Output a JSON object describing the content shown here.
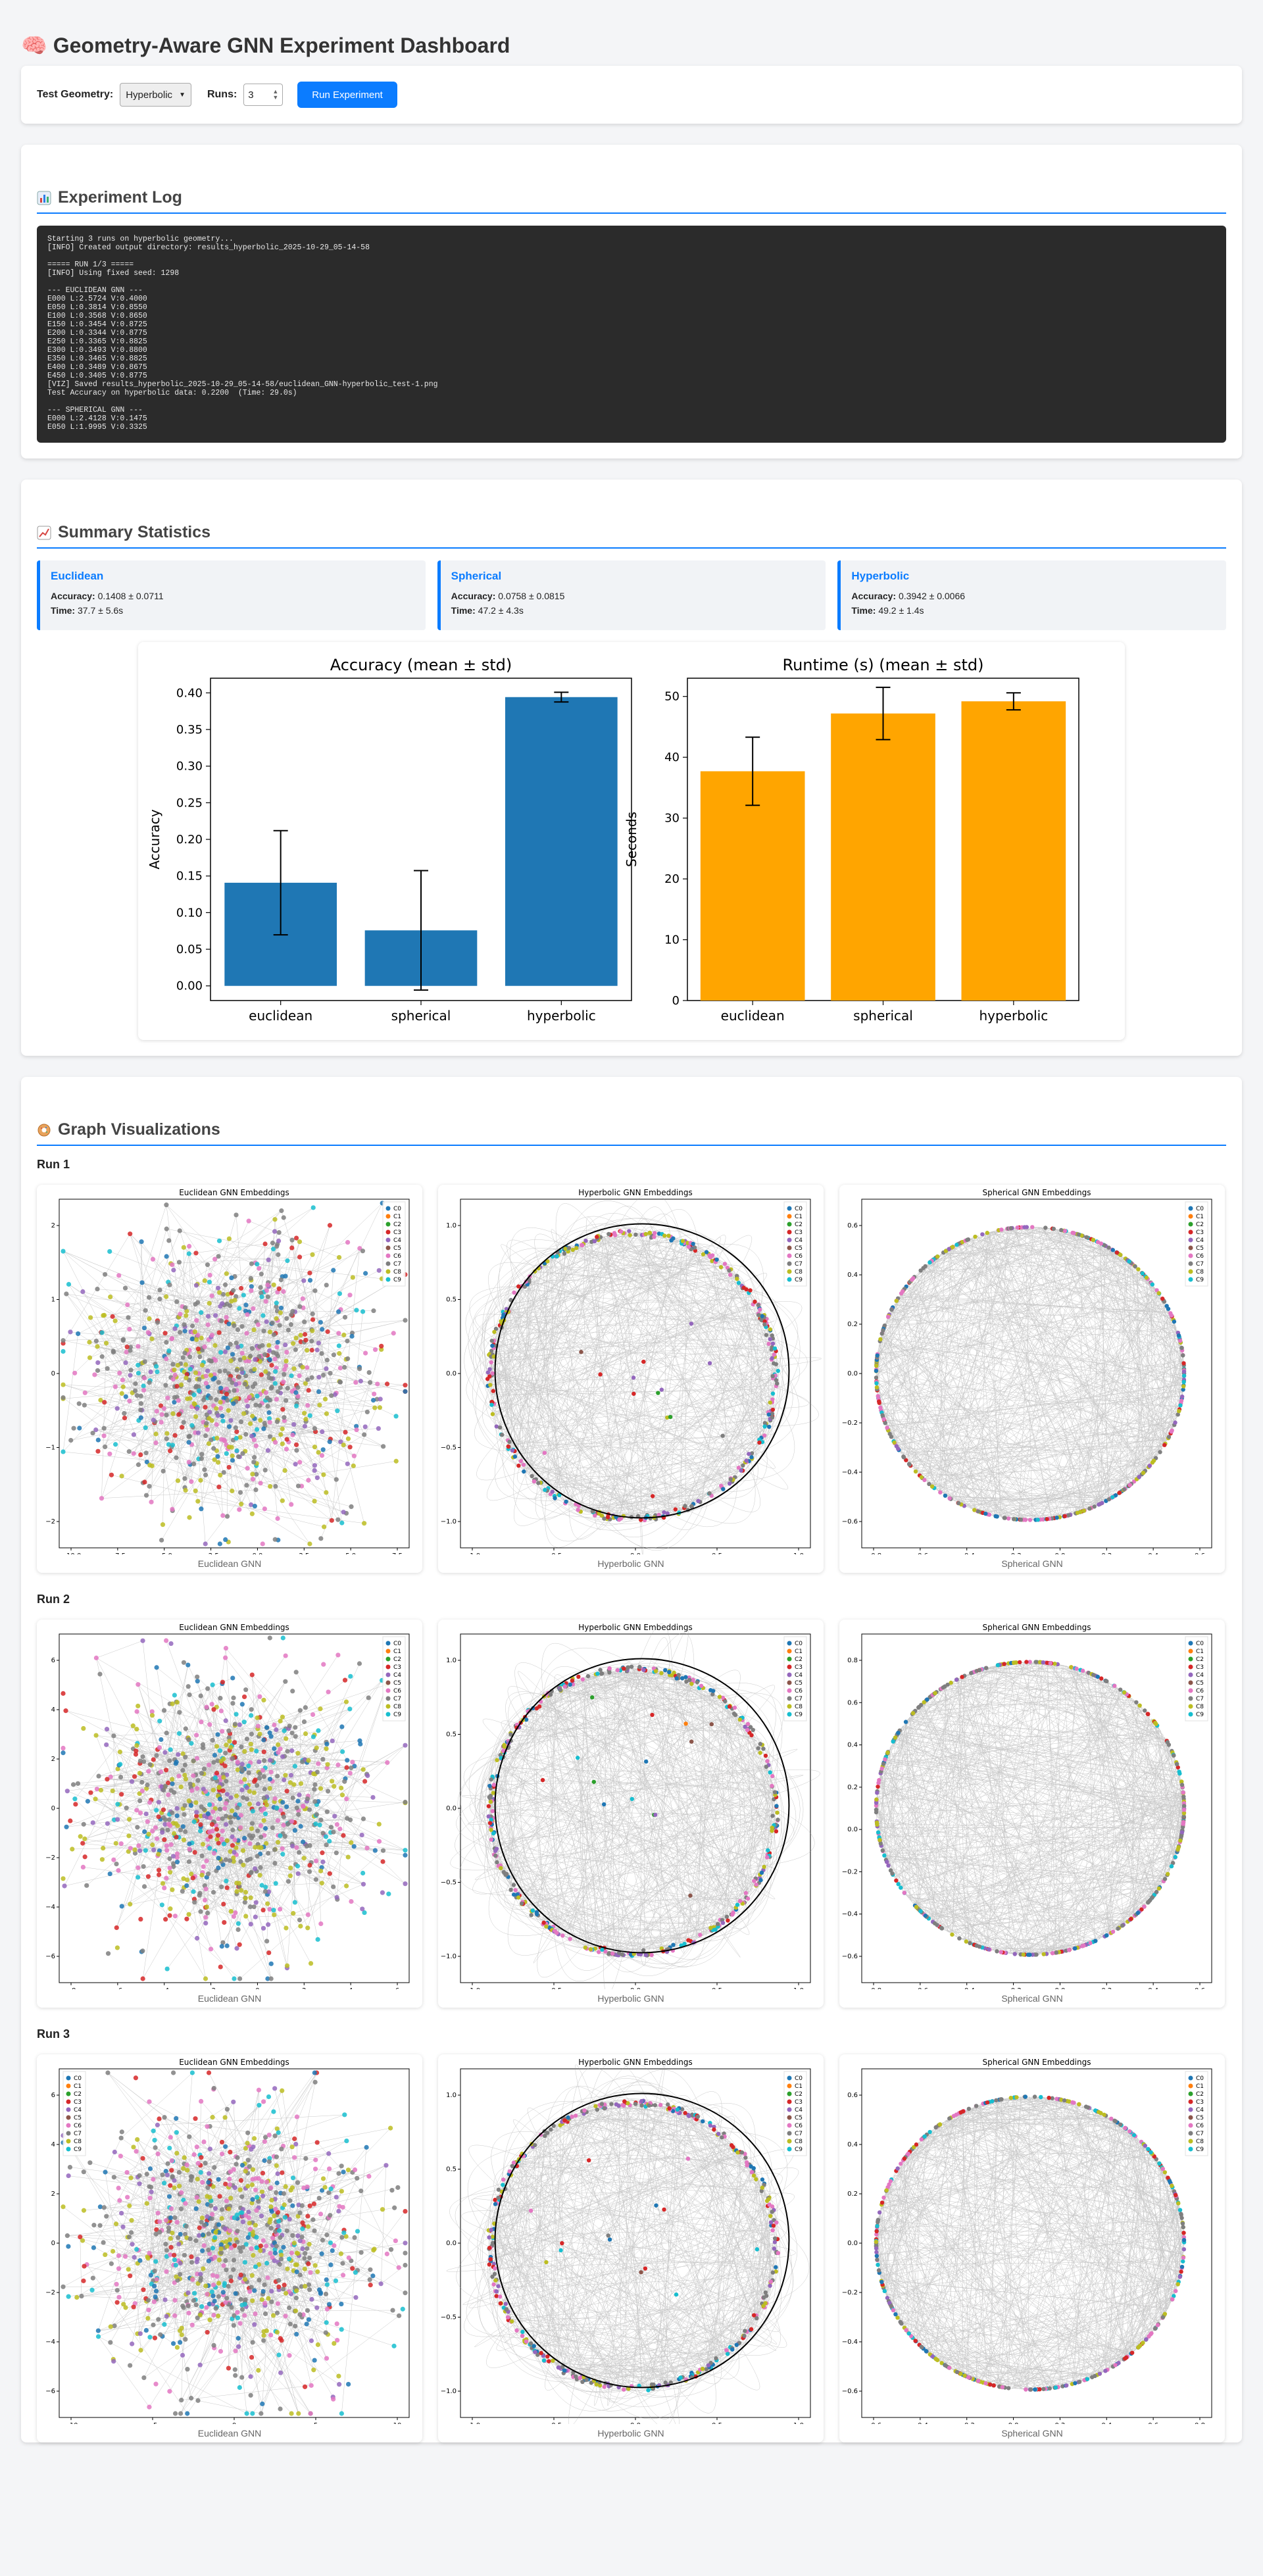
{
  "header": {
    "icon": "brain-icon",
    "title": "🧠 Geometry-Aware GNN Experiment Dashboard"
  },
  "controls": {
    "geometry_label": "Test Geometry:",
    "geometry_value": "Hyperbolic",
    "runs_label": "Runs:",
    "runs_value": "3",
    "run_button": "Run Experiment"
  },
  "log": {
    "title": "Experiment Log",
    "icon": "bar-chart-icon",
    "text": "Starting 3 runs on hyperbolic geometry...\n[INFO] Created output directory: results_hyperbolic_2025-10-29_05-14-58\n\n===== RUN 1/3 =====\n[INFO] Using fixed seed: 1298\n\n--- EUCLIDEAN GNN ---\nE000 L:2.5724 V:0.4000\nE050 L:0.3814 V:0.8550\nE100 L:0.3568 V:0.8650\nE150 L:0.3454 V:0.8725\nE200 L:0.3344 V:0.8775\nE250 L:0.3365 V:0.8825\nE300 L:0.3493 V:0.8800\nE350 L:0.3465 V:0.8825\nE400 L:0.3489 V:0.8675\nE450 L:0.3405 V:0.8775\n[VIZ] Saved results_hyperbolic_2025-10-29_05-14-58/euclidean_GNN-hyperbolic_test-1.png\nTest Accuracy on hyperbolic data: 0.2200  (Time: 29.0s)\n\n--- SPHERICAL GNN ---\nE000 L:2.4128 V:0.1475\nE050 L:1.9995 V:0.3325"
  },
  "summary": {
    "title": "Summary Statistics",
    "icon": "trend-chart-icon",
    "acc_label": "Accuracy:",
    "time_label": "Time:",
    "cards": [
      {
        "name": "Euclidean",
        "accuracy": "0.1408 ± 0.0711",
        "time": "37.7 ± 5.6s"
      },
      {
        "name": "Spherical",
        "accuracy": "0.0758 ± 0.0815",
        "time": "47.2 ± 4.3s"
      },
      {
        "name": "Hyperbolic",
        "accuracy": "0.3942 ± 0.0066",
        "time": "49.2 ± 1.4s"
      }
    ]
  },
  "chart_data": [
    {
      "type": "bar",
      "title": "Accuracy (mean ± std)",
      "ylabel": "Accuracy",
      "xlabel": "",
      "categories": [
        "euclidean",
        "spherical",
        "hyperbolic"
      ],
      "values": [
        0.1408,
        0.0758,
        0.3942
      ],
      "errors": [
        0.0711,
        0.0815,
        0.0066
      ],
      "ylim": [
        -0.02,
        0.42
      ],
      "yticks": [
        0.0,
        0.05,
        0.1,
        0.15,
        0.2,
        0.25,
        0.3,
        0.35,
        0.4
      ],
      "ytick_labels": [
        "0.00",
        "0.05",
        "0.10",
        "0.15",
        "0.20",
        "0.25",
        "0.30",
        "0.35",
        "0.40"
      ],
      "color": "#1f77b4",
      "grid": false
    },
    {
      "type": "bar",
      "title": "Runtime (s) (mean ± std)",
      "ylabel": "Seconds",
      "xlabel": "",
      "categories": [
        "euclidean",
        "spherical",
        "hyperbolic"
      ],
      "values": [
        37.7,
        47.2,
        49.2
      ],
      "errors": [
        5.6,
        4.3,
        1.4
      ],
      "ylim": [
        0,
        53
      ],
      "yticks": [
        0,
        10,
        20,
        30,
        40,
        50
      ],
      "ytick_labels": [
        "0",
        "10",
        "20",
        "30",
        "40",
        "50"
      ],
      "color": "#ffa500",
      "grid": false
    }
  ],
  "viz": {
    "title": "Graph Visualizations",
    "icon": "donut-icon",
    "legend": [
      "C0",
      "C1",
      "C2",
      "C3",
      "C4",
      "C5",
      "C6",
      "C7",
      "C8",
      "C9"
    ],
    "legend_colors": [
      "#1f77b4",
      "#ff7f0e",
      "#2ca02c",
      "#d62728",
      "#9467bd",
      "#8c564b",
      "#e377c2",
      "#7f7f7f",
      "#bcbd22",
      "#17becf"
    ],
    "runs": [
      {
        "label": "Run 1",
        "panels": [
          {
            "kind": "euclidean",
            "title": "Euclidean GNN Embeddings",
            "caption": "Euclidean GNN",
            "xticks": [
              "−10.0",
              "−7.5",
              "−5.0",
              "−2.5",
              "0.0",
              "2.5",
              "5.0",
              "7.5"
            ],
            "yticks": [
              "2",
              "1",
              "0",
              "−1",
              "−2"
            ]
          },
          {
            "kind": "hyperbolic",
            "title": "Hyperbolic GNN Embeddings",
            "caption": "Hyperbolic GNN",
            "xticks": [
              "−1.0",
              "−0.5",
              "0.0",
              "0.5",
              "1.0"
            ],
            "yticks": [
              "1.0",
              "0.5",
              "0.0",
              "−0.5",
              "−1.0"
            ]
          },
          {
            "kind": "spherical",
            "title": "Spherical GNN Embeddings",
            "caption": "Spherical GNN",
            "xticks": [
              "−0.8",
              "−0.6",
              "−0.4",
              "−0.2",
              "0.0",
              "0.2",
              "0.4",
              "0.6"
            ],
            "yticks": [
              "0.6",
              "0.4",
              "0.2",
              "0.0",
              "−0.2",
              "−0.4",
              "−0.6"
            ]
          }
        ]
      },
      {
        "label": "Run 2",
        "panels": [
          {
            "kind": "euclidean",
            "title": "Euclidean GNN Embeddings",
            "caption": "Euclidean GNN",
            "xticks": [
              "−8",
              "−6",
              "−4",
              "−2",
              "0",
              "2",
              "4",
              "6"
            ],
            "yticks": [
              "6",
              "4",
              "2",
              "0",
              "−2",
              "−4",
              "−6"
            ]
          },
          {
            "kind": "hyperbolic",
            "title": "Hyperbolic GNN Embeddings",
            "caption": "Hyperbolic GNN",
            "xticks": [
              "−1.0",
              "−0.5",
              "0.0",
              "0.5",
              "1.0"
            ],
            "yticks": [
              "1.0",
              "0.5",
              "0.0",
              "−0.5",
              "−1.0"
            ]
          },
          {
            "kind": "spherical",
            "title": "Spherical GNN Embeddings",
            "caption": "Spherical GNN",
            "xticks": [
              "−0.8",
              "−0.6",
              "−0.4",
              "−0.2",
              "0.0",
              "0.2",
              "0.4",
              "0.6"
            ],
            "yticks": [
              "0.8",
              "0.6",
              "0.4",
              "0.2",
              "0.0",
              "−0.2",
              "−0.4",
              "−0.6"
            ]
          }
        ]
      },
      {
        "label": "Run 3",
        "panels": [
          {
            "kind": "euclidean",
            "title": "Euclidean GNN Embeddings",
            "caption": "Euclidean GNN",
            "xticks": [
              "−10",
              "−5",
              "0",
              "5",
              "10"
            ],
            "yticks": [
              "6",
              "4",
              "2",
              "0",
              "−2",
              "−4",
              "−6"
            ]
          },
          {
            "kind": "hyperbolic",
            "title": "Hyperbolic GNN Embeddings",
            "caption": "Hyperbolic GNN",
            "xticks": [
              "−1.0",
              "−0.5",
              "0.0",
              "0.5",
              "1.0"
            ],
            "yticks": [
              "1.0",
              "0.5",
              "0.0",
              "−0.5",
              "−1.0"
            ]
          },
          {
            "kind": "spherical",
            "title": "Spherical GNN Embeddings",
            "caption": "Spherical GNN",
            "xticks": [
              "−0.6",
              "−0.4",
              "−0.2",
              "0.0",
              "0.2",
              "0.4",
              "0.6",
              "0.8"
            ],
            "yticks": [
              "0.6",
              "0.4",
              "0.2",
              "0.0",
              "−0.2",
              "−0.4",
              "−0.6"
            ]
          }
        ]
      }
    ]
  }
}
